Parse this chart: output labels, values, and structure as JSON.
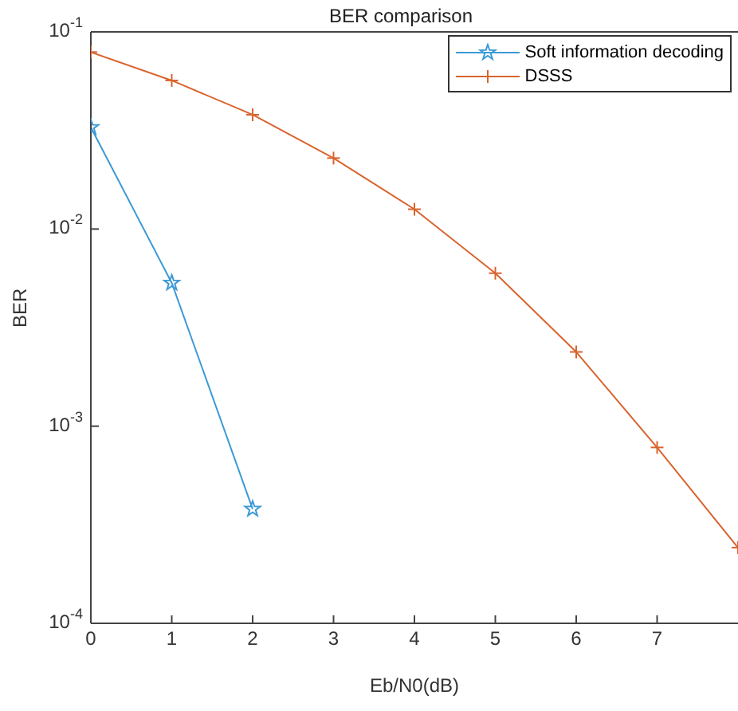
{
  "chart_data": {
    "type": "line",
    "title": "BER comparison",
    "xlabel": "Eb/N0(dB)",
    "ylabel": "BER",
    "series": [
      {
        "name": "Soft information decoding",
        "color": "#3d9ad6",
        "marker": "star",
        "x": [
          0,
          1,
          2
        ],
        "values": [
          0.0328,
          0.00533,
          0.00038
        ]
      },
      {
        "name": "DSSS",
        "color": "#d9642e",
        "marker": "cross",
        "x": [
          0,
          1,
          2,
          3,
          4,
          5,
          6,
          7,
          8
        ],
        "values": [
          0.079,
          0.0567,
          0.038,
          0.0229,
          0.0126,
          0.00597,
          0.00238,
          0.00078,
          0.000242
        ]
      }
    ],
    "log": "y",
    "xlim": [
      0,
      8
    ],
    "xticks": [
      0,
      1,
      2,
      3,
      4,
      5,
      6,
      7
    ],
    "ylim": [
      0.0001,
      0.1
    ],
    "yticks": [
      {
        "value": 0.0001,
        "label": "10$^{-4}$"
      },
      {
        "value": 0.001,
        "label": "10$^{-3}$"
      },
      {
        "value": 0.01,
        "label": "10$^{-2}$"
      },
      {
        "value": 0.1,
        "label": "10$^{-1}$"
      }
    ],
    "grid": false,
    "legend": "top right",
    "line_style": "solid"
  }
}
